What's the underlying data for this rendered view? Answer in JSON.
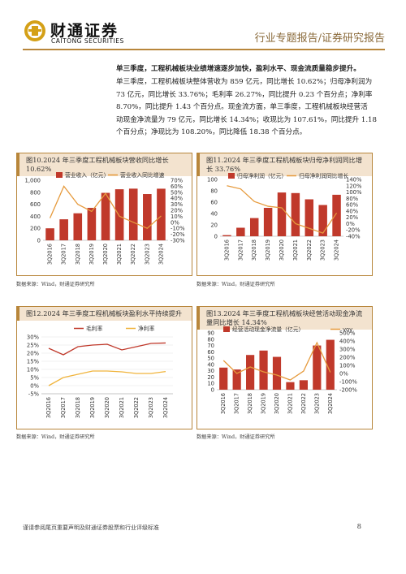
{
  "header": {
    "logo_cn": "财通证券",
    "logo_en": "CAITONG SECURITIES",
    "title": "行业专题报告/证券研究报告"
  },
  "text": {
    "heading": "单三季度，工程机械板块业绩增速逐步加快，盈利水平、现金流质量稳步提升。",
    "lines": [
      "单三季度，工程机械板块整体营收为 859 亿元，同比增长 10.62%；归母净利润为",
      "73 亿元，同比增长 33.76%；毛利率 26.27%，同比提升 0.23 个百分点；净利率",
      "8.70%，同比提升 1.43 个百分点。现金流方面，单三季度，工程机械板块经营活",
      "动现金净流量为 79 亿元，同比增长 14.34%；收现比为 107.61%，同比提升 1.18",
      "个百分点；净现比为 108.20%，同比降低 18.38 个百分点。"
    ]
  },
  "source_text": "数据来源：Wind，财通证券研究所",
  "footer": {
    "note": "谨请参阅尾页重要声明及财通证券股票和行业评级标准",
    "page": "8"
  },
  "chart_data": [
    {
      "type": "bar",
      "caption": "图10.2024 年三季度工程机械板块营收同比增长 10.62%",
      "title": "",
      "categories": [
        "3Q2016",
        "3Q2017",
        "3Q2018",
        "3Q2019",
        "3Q2020",
        "3Q2021",
        "3Q2022",
        "3Q2023",
        "3Q2024"
      ],
      "series": [
        {
          "name": "营业收入（亿元）",
          "kind": "bar",
          "axis": "left",
          "values": [
            200,
            350,
            450,
            540,
            790,
            850,
            860,
            770,
            859
          ]
        },
        {
          "name": "营业收入同比增速",
          "kind": "line",
          "axis": "right",
          "values": [
            7,
            60,
            30,
            18,
            48,
            10,
            0,
            -10,
            10.62
          ]
        }
      ],
      "y_left": {
        "ticks": [
          "0",
          "200",
          "400",
          "600",
          "800",
          "1,000"
        ],
        "min": 0,
        "max": 1000
      },
      "y_right": {
        "ticks": [
          "-30%",
          "-20%",
          "-10%",
          "0%",
          "10%",
          "20%",
          "30%",
          "40%",
          "50%",
          "60%",
          "70%"
        ],
        "min": -30,
        "max": 70
      },
      "legend": "top",
      "colors": {
        "bar": "#c0392b",
        "line": "#e69a3c"
      }
    },
    {
      "type": "bar",
      "caption": "图11.2024 年三季度工程机械板块归母净利润同比增长 33.76%",
      "title": "",
      "categories": [
        "3Q2016",
        "3Q2017",
        "3Q2018",
        "3Q2019",
        "3Q2020",
        "3Q2021",
        "3Q2022",
        "3Q2023",
        "3Q2024"
      ],
      "series": [
        {
          "name": "归母净利润（亿元）",
          "kind": "bar",
          "axis": "left",
          "values": [
            2,
            15,
            32,
            50,
            77,
            76,
            65,
            55,
            73
          ]
        },
        {
          "name": "归母净利润同比增长",
          "kind": "line",
          "axis": "right",
          "values": [
            120,
            110,
            70,
            55,
            50,
            0,
            -15,
            -30,
            33.76
          ]
        }
      ],
      "y_left": {
        "ticks": [
          "0",
          "20",
          "40",
          "60",
          "80",
          "100"
        ],
        "min": 0,
        "max": 100
      },
      "y_right": {
        "ticks": [
          "-40%",
          "-20%",
          "0%",
          "20%",
          "40%",
          "60%",
          "80%",
          "100%",
          "120%",
          "140%"
        ],
        "min": -40,
        "max": 140
      },
      "legend": "top",
      "colors": {
        "bar": "#c0392b",
        "line": "#e69a3c"
      }
    },
    {
      "type": "line",
      "caption": "图12.2024 年三季度工程机械板块盈利水平持续提升",
      "title": "",
      "categories": [
        "3Q2016",
        "3Q2017",
        "3Q2018",
        "3Q2019",
        "3Q2020",
        "3Q2021",
        "3Q2022",
        "3Q2023",
        "3Q2024"
      ],
      "series": [
        {
          "name": "毛利率",
          "values": [
            23,
            19,
            24,
            25,
            25.5,
            22,
            24,
            26,
            26.27
          ]
        },
        {
          "name": "净利率",
          "values": [
            0,
            5,
            7,
            9,
            9,
            8.5,
            7.5,
            7.5,
            8.7
          ]
        }
      ],
      "y_left": {
        "ticks": [
          "-5%",
          "0%",
          "5%",
          "10%",
          "15%",
          "20%",
          "25%",
          "30%"
        ],
        "min": -5,
        "max": 30
      },
      "legend": "top",
      "colors": {
        "series0": "#c0392b",
        "series1": "#f0b43c"
      }
    },
    {
      "type": "bar",
      "caption": "图13.2024 年三季度工程机械板块经营活动现金净流量同比增长 14.34%",
      "title": "",
      "categories": [
        "3Q2016",
        "3Q2017",
        "3Q2018",
        "3Q2019",
        "3Q2020",
        "3Q2021",
        "3Q2022",
        "3Q2023",
        "3Q2024"
      ],
      "series": [
        {
          "name": "经营活动现金净流量（亿元）",
          "kind": "bar",
          "axis": "left",
          "values": [
            35,
            32,
            55,
            62,
            52,
            12,
            15,
            70,
            79
          ]
        },
        {
          "name": "yoy",
          "kind": "line",
          "axis": "right",
          "values": [
            160,
            0,
            80,
            20,
            -20,
            -80,
            30,
            380,
            14.34
          ]
        }
      ],
      "y_left": {
        "ticks": [
          "0",
          "10",
          "20",
          "30",
          "40",
          "50",
          "60",
          "70",
          "80",
          "90"
        ],
        "min": 0,
        "max": 90
      },
      "y_right": {
        "ticks": [
          "-200%",
          "-100%",
          "0%",
          "100%",
          "200%",
          "300%",
          "400%",
          "500%"
        ],
        "min": -200,
        "max": 500
      },
      "legend": "top",
      "colors": {
        "bar": "#c0392b",
        "line": "#e69a3c"
      }
    }
  ]
}
